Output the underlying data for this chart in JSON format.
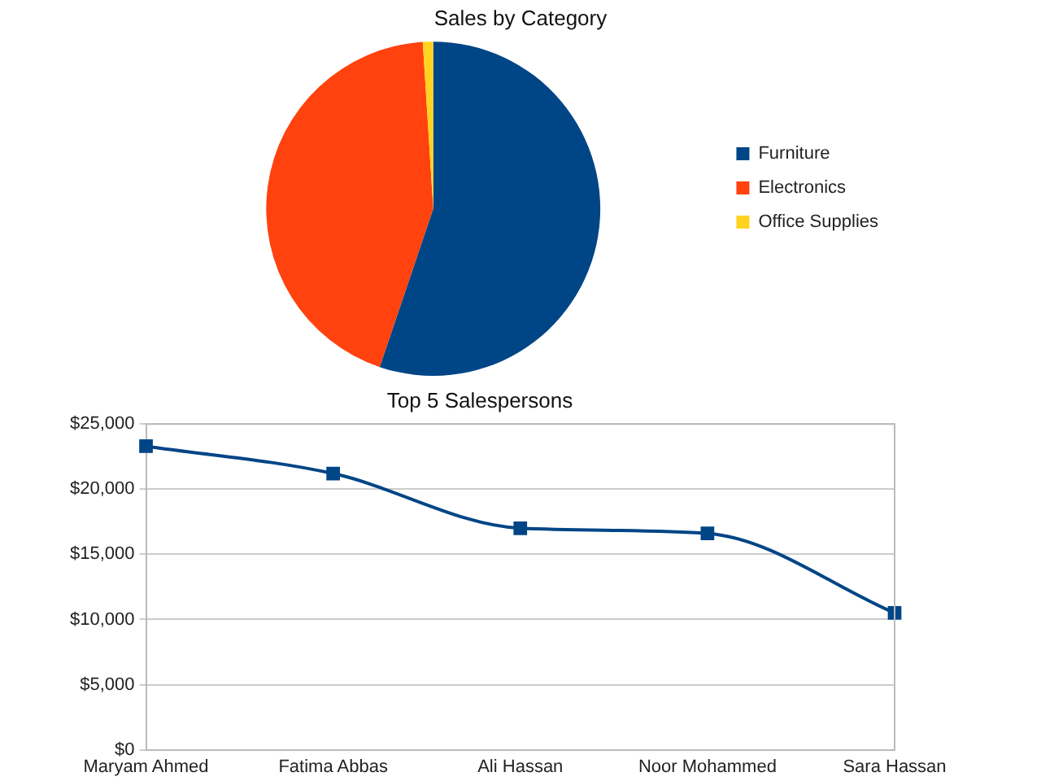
{
  "chart_data": [
    {
      "type": "pie",
      "title": "Sales by Category",
      "categories": [
        "Furniture",
        "Electronics",
        "Office Supplies"
      ],
      "values": [
        55.2,
        43.8,
        1.0
      ],
      "colors": [
        "#004586",
        "#ff420e",
        "#ffd320"
      ],
      "legend": "right"
    },
    {
      "type": "line",
      "title": "Top 5 Salespersons",
      "categories": [
        "Maryam Ahmed",
        "Fatima Abbas",
        "Ali Hassan",
        "Noor Mohammed",
        "Sara Hassan"
      ],
      "series": [
        {
          "color": "#004586",
          "values": [
            23300,
            21200,
            17000,
            16600,
            10500
          ]
        }
      ],
      "ylim": [
        0,
        25000
      ],
      "yticks": [
        {
          "value": 0,
          "label": "$0"
        },
        {
          "value": 5000,
          "label": "$5,000"
        },
        {
          "value": 10000,
          "label": "$10,000"
        },
        {
          "value": 15000,
          "label": "$15,000"
        },
        {
          "value": 20000,
          "label": "$20,000"
        },
        {
          "value": 25000,
          "label": "$25,000"
        }
      ],
      "grid": "y",
      "marker": "square",
      "line_style": "solid",
      "legend": false
    }
  ]
}
